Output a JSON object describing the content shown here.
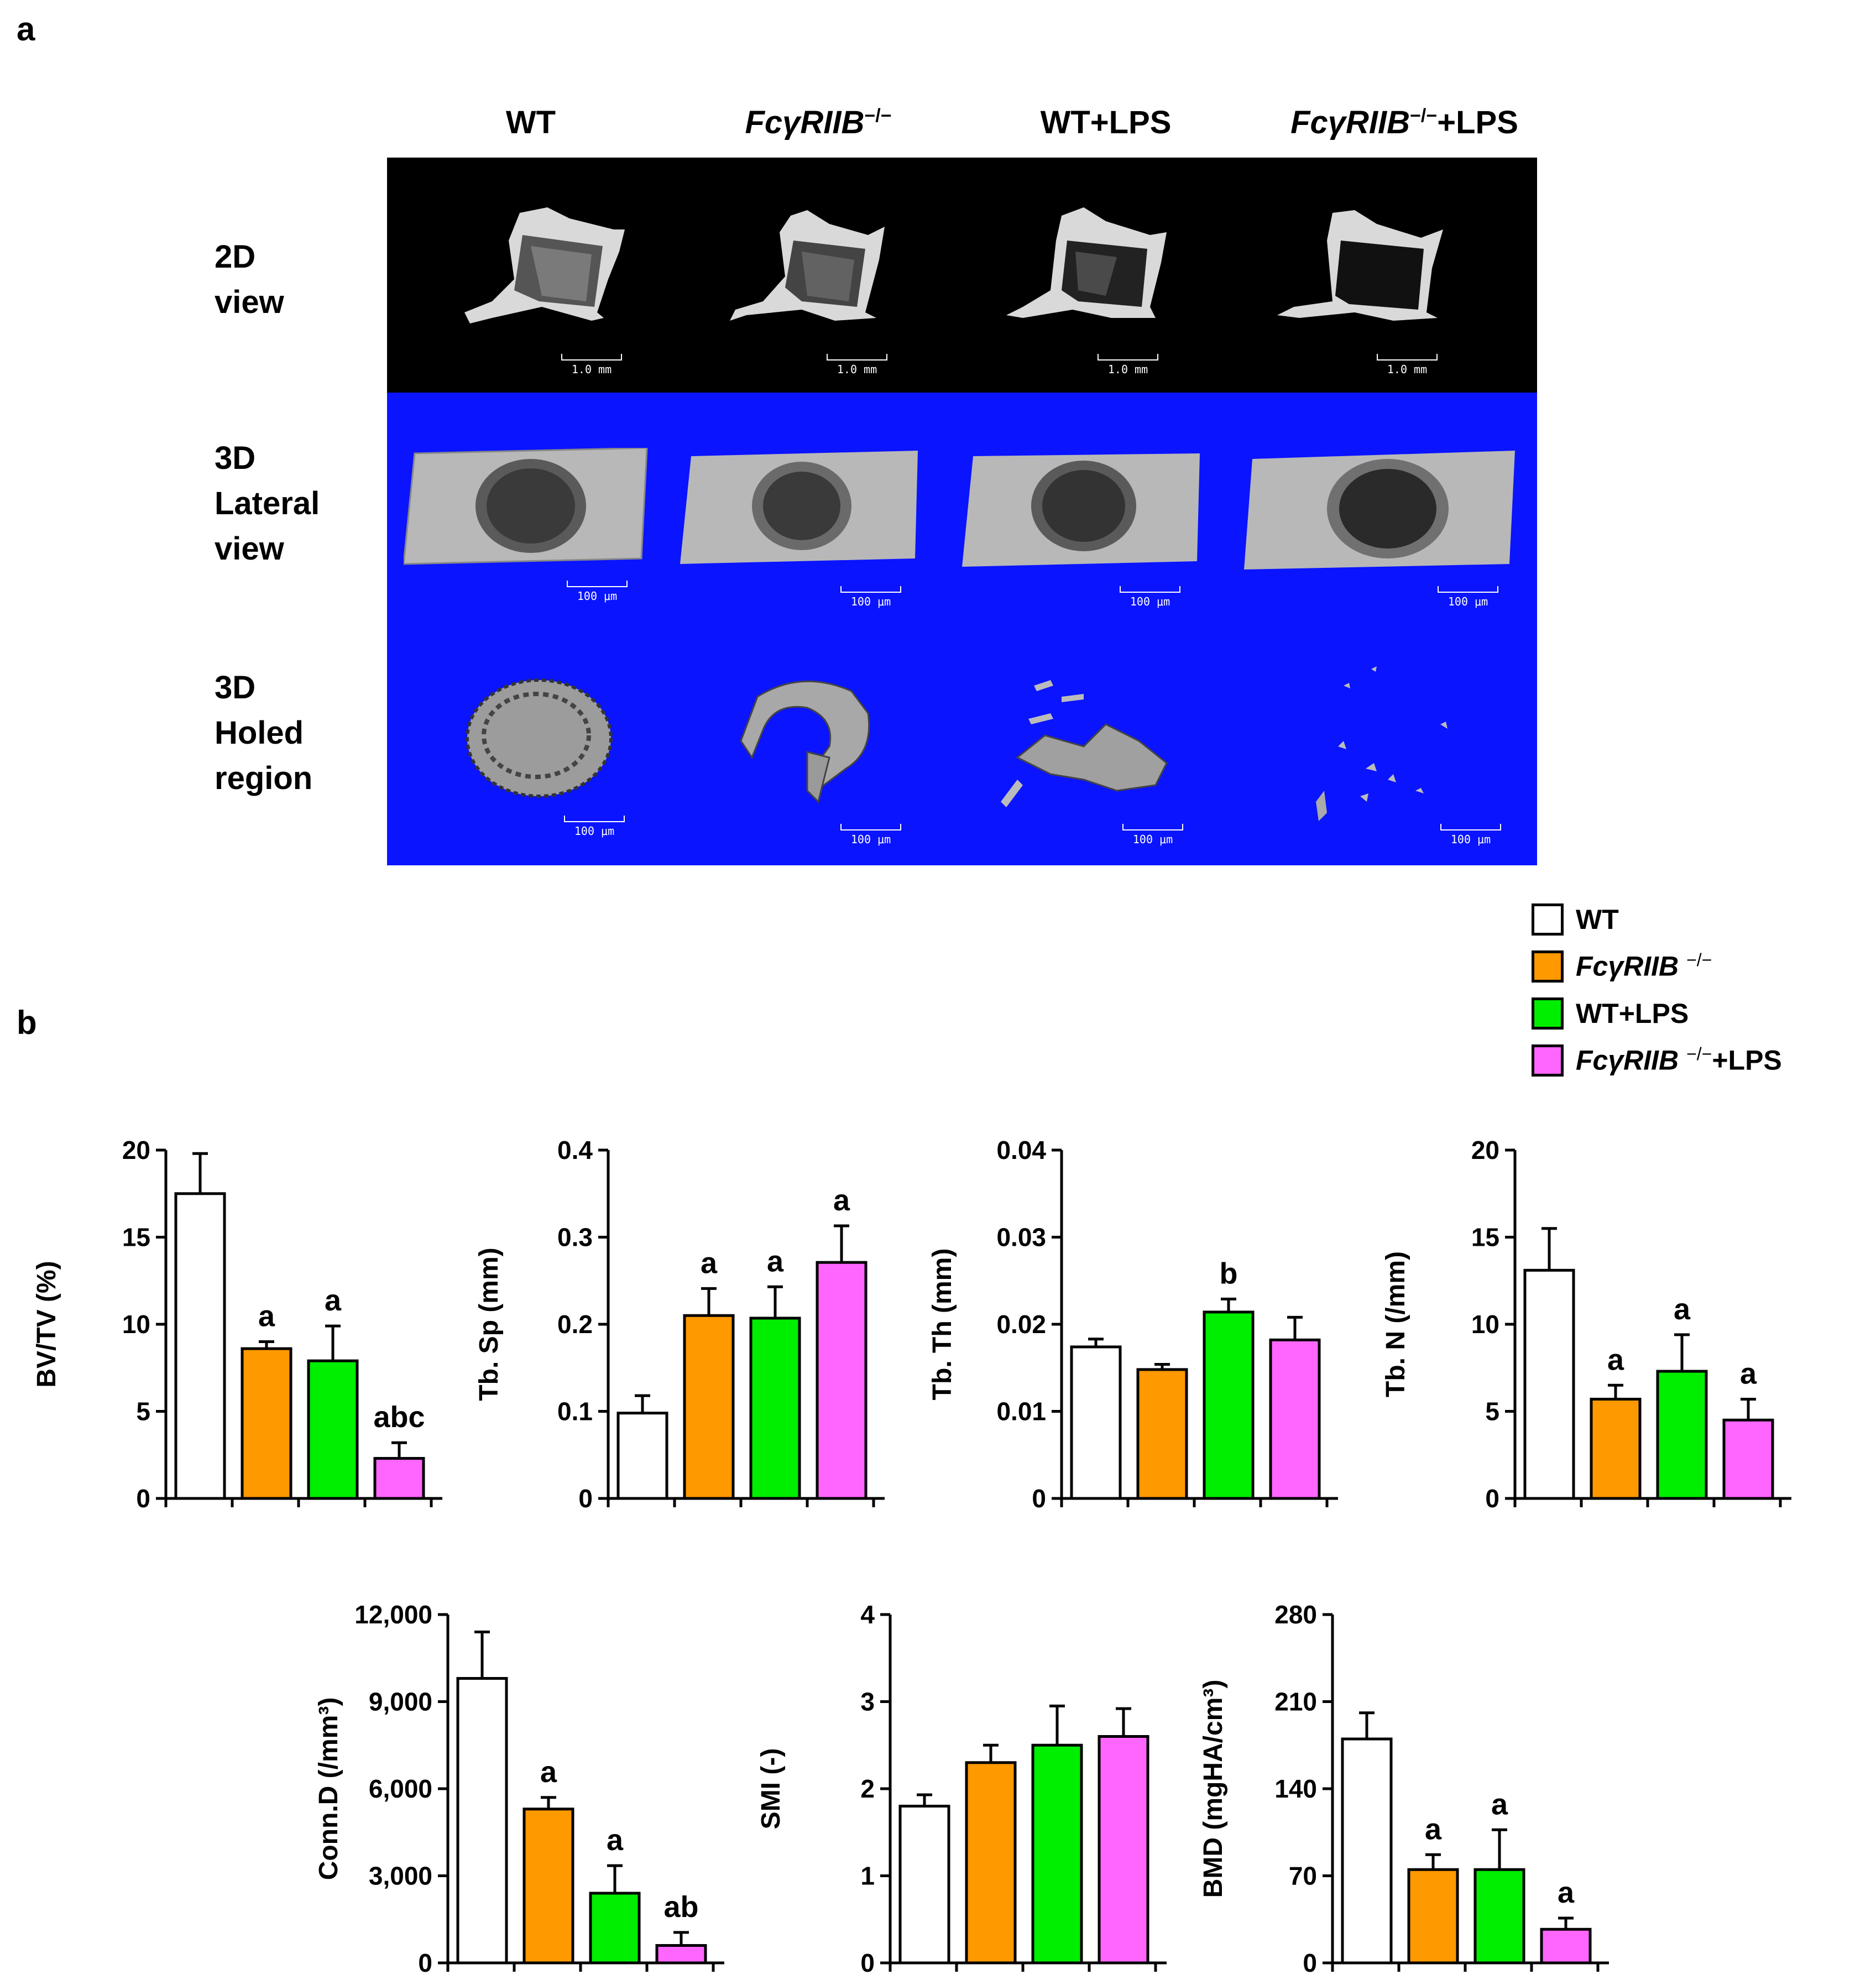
{
  "panels": {
    "a": "a",
    "b": "b"
  },
  "columns": [
    {
      "main": "WT",
      "italic": "",
      "sup": "",
      "suffix": ""
    },
    {
      "main": "",
      "italic": "FcγRIIB",
      "sup": "−/−",
      "suffix": ""
    },
    {
      "main": "WT+LPS",
      "italic": "",
      "sup": "",
      "suffix": ""
    },
    {
      "main": "",
      "italic": "FcγRIIB",
      "sup": "−/−",
      "suffix": "+LPS"
    }
  ],
  "rows": [
    {
      "lines": [
        "2D",
        "view"
      ]
    },
    {
      "lines": [
        "3D",
        "Lateral",
        "view"
      ]
    },
    {
      "lines": [
        "3D",
        "Holed",
        "region"
      ]
    }
  ],
  "scalebars": {
    "row1": "1.0 mm",
    "row2": "100 μm",
    "row3": "100 μm"
  },
  "legend": [
    {
      "label": "WT",
      "italic": "",
      "sup": "",
      "suffix": "",
      "color": "#ffffff"
    },
    {
      "label": "",
      "italic": "FcγRIIB",
      "sup": "−/−",
      "suffix": "",
      "color": "#ff9900"
    },
    {
      "label": "WT+LPS",
      "italic": "",
      "sup": "",
      "suffix": "",
      "color": "#00ee00"
    },
    {
      "label": "",
      "italic": "FcγRIIB",
      "sup": "−/−",
      "suffix": "+LPS",
      "color": "#ff66ff"
    }
  ],
  "colors": {
    "WT": "#ffffff",
    "KO": "#ff9900",
    "WT_LPS": "#00ee00",
    "KO_LPS": "#ff66ff"
  },
  "chart_data": [
    {
      "type": "bar",
      "ylabel": "BV/TV (%)",
      "ylim": [
        0,
        20
      ],
      "yticks": [
        "0",
        "5",
        "10",
        "15",
        "20"
      ],
      "values": [
        17.5,
        8.6,
        7.9,
        2.3
      ],
      "errors": [
        2.3,
        0.4,
        2.0,
        0.9
      ],
      "labels": [
        "",
        "a",
        "a",
        "abc"
      ]
    },
    {
      "type": "bar",
      "ylabel": "Tb. Sp (mm)",
      "ylim": [
        0,
        0.4
      ],
      "yticks": [
        "0",
        "0.1",
        "0.2",
        "0.3",
        "0.4"
      ],
      "values": [
        0.098,
        0.21,
        0.207,
        0.271
      ],
      "errors": [
        0.02,
        0.031,
        0.036,
        0.042
      ],
      "labels": [
        "",
        "a",
        "a",
        "a"
      ]
    },
    {
      "type": "bar",
      "ylabel": "Tb. Th (mm)",
      "ylim": [
        0,
        0.04
      ],
      "yticks": [
        "0",
        "0.01",
        "0.02",
        "0.03",
        "0.04"
      ],
      "values": [
        0.0174,
        0.0148,
        0.0214,
        0.0182
      ],
      "errors": [
        0.0009,
        0.0006,
        0.0015,
        0.0026
      ],
      "labels": [
        "",
        "",
        "b",
        ""
      ]
    },
    {
      "type": "bar",
      "ylabel": "Tb. N (/mm)",
      "ylim": [
        0,
        20
      ],
      "yticks": [
        "0",
        "5",
        "10",
        "15",
        "20"
      ],
      "values": [
        13.1,
        5.7,
        7.3,
        4.5
      ],
      "errors": [
        2.4,
        0.8,
        2.1,
        1.2
      ],
      "labels": [
        "",
        "a",
        "a",
        "a"
      ]
    },
    {
      "type": "bar",
      "ylabel": "Conn.D (/mm³)",
      "ylim": [
        0,
        12000
      ],
      "yticks": [
        "0",
        "3,000",
        "6,000",
        "9,000",
        "12,000"
      ],
      "values": [
        9800,
        5300,
        2400,
        600
      ],
      "errors": [
        1600,
        400,
        950,
        450
      ],
      "labels": [
        "",
        "a",
        "a",
        "ab"
      ]
    },
    {
      "type": "bar",
      "ylabel": "SMI (-)",
      "ylim": [
        0,
        4
      ],
      "yticks": [
        "0",
        "1",
        "2",
        "3",
        "4"
      ],
      "values": [
        1.8,
        2.3,
        2.5,
        2.6
      ],
      "errors": [
        0.13,
        0.2,
        0.45,
        0.32
      ],
      "labels": [
        "",
        "",
        "",
        ""
      ]
    },
    {
      "type": "bar",
      "ylabel": "BMD (mgHA/cm³)",
      "ylim": [
        0,
        280
      ],
      "yticks": [
        "0",
        "70",
        "140",
        "210",
        "280"
      ],
      "values": [
        180,
        75,
        75,
        27
      ],
      "errors": [
        21,
        12,
        32,
        9
      ],
      "labels": [
        "",
        "a",
        "a",
        "a"
      ]
    }
  ]
}
